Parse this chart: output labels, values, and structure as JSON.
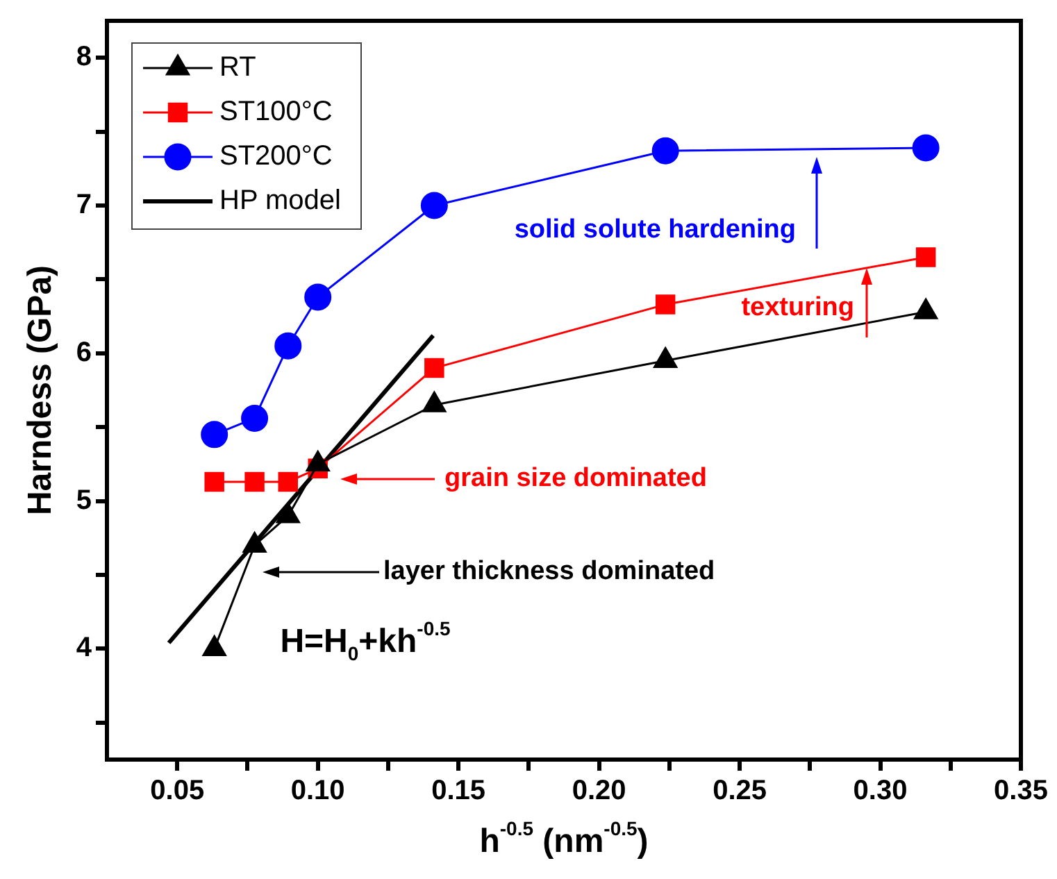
{
  "chart_data": {
    "type": "line",
    "xlabel": "h$^{-0.5}$ (nm$^{-0.5}$)",
    "ylabel": "Harndess (GPa)",
    "x": [
      0.0632,
      0.0775,
      0.0894,
      0.1,
      0.1414,
      0.2236,
      0.3162
    ],
    "series": [
      {
        "name": "RT",
        "color": "#000000",
        "marker": "triangle",
        "values": [
          4.0,
          4.7,
          4.9,
          5.25,
          5.65,
          5.95,
          6.28
        ]
      },
      {
        "name": "ST100°C",
        "color": "#ff0000",
        "marker": "square",
        "values": [
          5.13,
          5.13,
          5.13,
          5.22,
          5.9,
          6.33,
          6.65
        ]
      },
      {
        "name": "ST200°C",
        "color": "#0000ff",
        "marker": "circle",
        "values": [
          5.45,
          5.56,
          6.05,
          6.38,
          7.0,
          7.37,
          7.39
        ]
      },
      {
        "name": "HP model",
        "color": "#000000",
        "type": "line",
        "marker": "none",
        "x": [
          0.047,
          0.141
        ],
        "values": [
          4.04,
          6.12
        ]
      }
    ],
    "xlim": [
      0.025,
      0.35
    ],
    "xticks": [
      {
        "value": 0.05,
        "label": "0.05"
      },
      {
        "value": 0.075,
        "label": null
      },
      {
        "value": 0.1,
        "label": "0.10"
      },
      {
        "value": 0.125,
        "label": null
      },
      {
        "value": 0.15,
        "label": "0.15"
      },
      {
        "value": 0.175,
        "label": null
      },
      {
        "value": 0.2,
        "label": "0.20"
      },
      {
        "value": 0.225,
        "label": null
      },
      {
        "value": 0.25,
        "label": "0.25"
      },
      {
        "value": 0.275,
        "label": null
      },
      {
        "value": 0.3,
        "label": "0.30"
      },
      {
        "value": 0.325,
        "label": null
      },
      {
        "value": 0.35,
        "label": "0.35"
      }
    ],
    "ylim": [
      3.25,
      8.25
    ],
    "yticks": [
      {
        "value": 3.5,
        "label": null
      },
      4,
      {
        "value": 4.5,
        "label": null
      },
      5,
      {
        "value": 5.5,
        "label": null
      },
      6,
      {
        "value": 6.5,
        "label": null
      },
      7,
      {
        "value": 7.5,
        "label": null
      },
      8
    ],
    "grid": false,
    "legend": "top left",
    "line_style": "solid",
    "annotations": [
      "solid solute hardening",
      "texturing",
      "grain size dominated",
      "layer thickness dominated",
      "H=H$_{0}$+kh$^{-0.5}$"
    ]
  }
}
